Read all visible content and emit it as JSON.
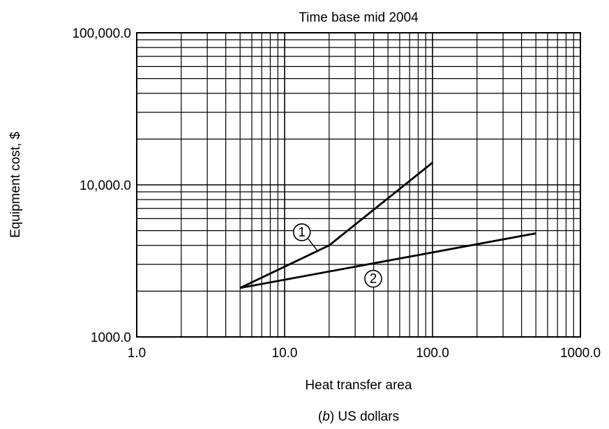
{
  "chart_data": {
    "type": "line",
    "title": "Time base mid 2004",
    "xlabel": "Heat transfer area",
    "ylabel": "Equipment cost, $",
    "x_scale": "log",
    "y_scale": "log",
    "xlim": [
      1,
      1000
    ],
    "ylim": [
      1000,
      100000
    ],
    "x_ticks": [
      1,
      10,
      100,
      1000
    ],
    "x_tick_labels": [
      "1.0",
      "10.0",
      "100.0",
      "1000.0"
    ],
    "y_ticks": [
      1000,
      10000,
      100000
    ],
    "y_tick_labels": [
      "1000.0",
      "10,000.0",
      "100,000.0"
    ],
    "grid": true,
    "series": [
      {
        "marker": "1",
        "x": [
          5,
          20,
          100
        ],
        "y": [
          2100,
          4000,
          14000
        ]
      },
      {
        "marker": "2",
        "x": [
          5,
          500
        ],
        "y": [
          2100,
          4800
        ]
      }
    ],
    "caption": {
      "prefix": "(",
      "letter": "b",
      "suffix": ") US dollars"
    }
  }
}
